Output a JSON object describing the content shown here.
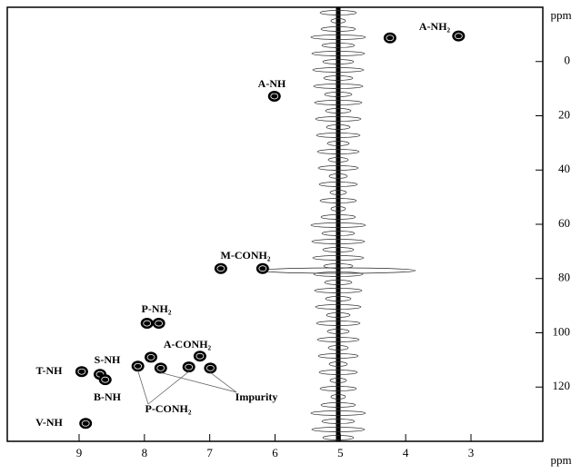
{
  "chart_data": {
    "type": "scatter",
    "x_label": "ppm",
    "y_label": "ppm",
    "xlim": [
      10.1,
      1.9
    ],
    "ylim": [
      -20,
      140
    ],
    "xticks": [
      9,
      8,
      7,
      6,
      5,
      4,
      3
    ],
    "yticks": [
      0,
      20,
      40,
      60,
      80,
      100,
      120
    ],
    "color": "#000000",
    "series": [
      {
        "name": "A-NH₂",
        "x": [
          4.24,
          3.19
        ],
        "values": [
          -8.7,
          -9.4
        ]
      },
      {
        "name": "A-NH",
        "x": [
          6.01
        ],
        "values": [
          12.8
        ]
      },
      {
        "name": "M-CONH₂",
        "x": [
          6.83,
          6.19
        ],
        "values": [
          76.3,
          76.3
        ]
      },
      {
        "name": "P-NH₂",
        "x": [
          7.96,
          7.78
        ],
        "values": [
          96.5,
          96.5
        ]
      },
      {
        "name": "A-CONH₂",
        "x": [
          7.9,
          7.15
        ],
        "values": [
          109,
          108.6
        ]
      },
      {
        "name": "P-CONH₂",
        "x": [
          8.1,
          7.32
        ],
        "values": [
          112.3,
          112.6
        ]
      },
      {
        "name": "Impurity",
        "x": [
          7.75,
          6.99
        ],
        "values": [
          113,
          113
        ]
      },
      {
        "name": "T-NH",
        "x": [
          8.96
        ],
        "values": [
          114.3
        ]
      },
      {
        "name": "S-NH",
        "x": [
          8.68
        ],
        "values": [
          115.3
        ]
      },
      {
        "name": "B-NH",
        "x": [
          8.6
        ],
        "values": [
          117.3
        ]
      },
      {
        "name": "V-NH",
        "x": [
          8.9
        ],
        "values": [
          133.4
        ]
      }
    ]
  }
}
